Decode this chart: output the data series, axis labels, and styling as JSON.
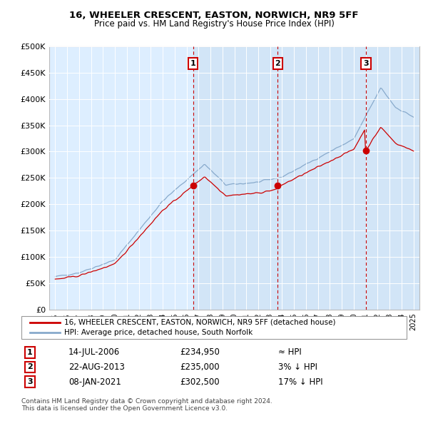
{
  "title": "16, WHEELER CRESCENT, EASTON, NORWICH, NR9 5FF",
  "subtitle": "Price paid vs. HM Land Registry's House Price Index (HPI)",
  "legend_line1": "16, WHEELER CRESCENT, EASTON, NORWICH, NR9 5FF (detached house)",
  "legend_line2": "HPI: Average price, detached house, South Norfolk",
  "table_rows": [
    {
      "num": "1",
      "date": "14-JUL-2006",
      "price": "£234,950",
      "rel": "≈ HPI"
    },
    {
      "num": "2",
      "date": "22-AUG-2013",
      "price": "£235,000",
      "rel": "3% ↓ HPI"
    },
    {
      "num": "3",
      "date": "08-JAN-2021",
      "price": "£302,500",
      "rel": "17% ↓ HPI"
    }
  ],
  "footer": "Contains HM Land Registry data © Crown copyright and database right 2024.\nThis data is licensed under the Open Government Licence v3.0.",
  "sale_color": "#cc0000",
  "hpi_color": "#88aacc",
  "plot_bg": "#ddeeff",
  "ylim": [
    0,
    500000
  ],
  "yticks": [
    0,
    50000,
    100000,
    150000,
    200000,
    250000,
    300000,
    350000,
    400000,
    450000,
    500000
  ],
  "ytick_labels": [
    "£0",
    "£50K",
    "£100K",
    "£150K",
    "£200K",
    "£250K",
    "£300K",
    "£350K",
    "£400K",
    "£450K",
    "£500K"
  ],
  "xmin": 1994.5,
  "xmax": 2025.5,
  "sale_dates": [
    2006.54,
    2013.64,
    2021.02
  ],
  "sale_prices": [
    234950,
    235000,
    302500
  ],
  "vline_color": "#cc0000",
  "num_box_color": "#cc0000",
  "shading_alpha": 0.25,
  "seed": 42
}
